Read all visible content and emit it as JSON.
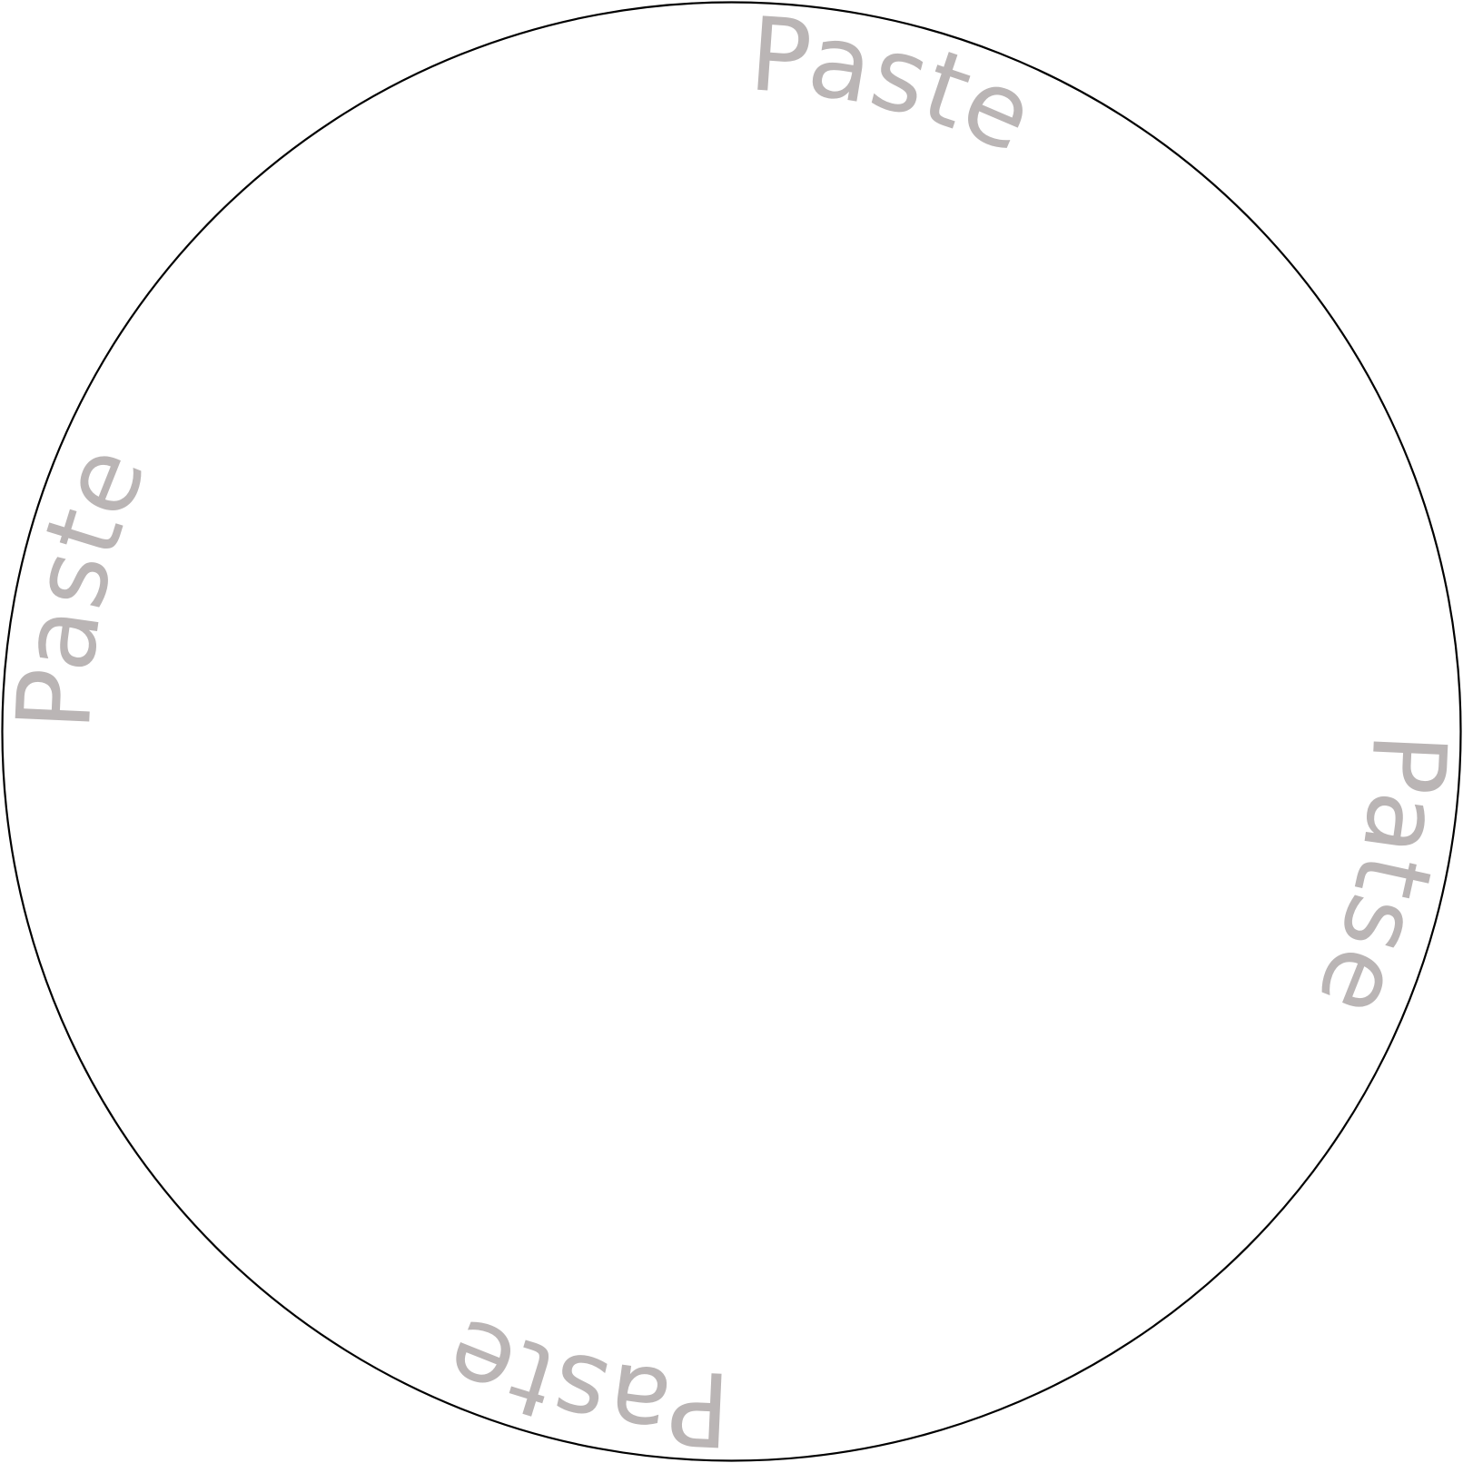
{
  "labels": {
    "top": "Paste",
    "right": "Patse",
    "bottom": "Paste",
    "left": "Paste"
  },
  "colors": {
    "outline": "#000000",
    "label": "#bab5b5",
    "background": "#ffffff"
  }
}
